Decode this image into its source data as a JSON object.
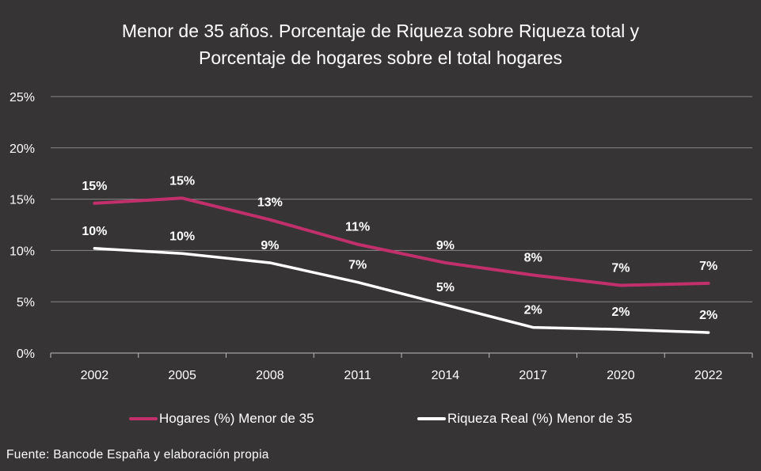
{
  "chart_data": {
    "type": "line",
    "title_line1": "Menor de 35 años.  Porcentaje de Riqueza sobre Riqueza total y",
    "title_line2": "Porcentaje de hogares sobre el total hogares",
    "categories": [
      "2002",
      "2005",
      "2008",
      "2011",
      "2014",
      "2017",
      "2020",
      "2022"
    ],
    "ylim": [
      0,
      25
    ],
    "yticks": [
      "0%",
      "5%",
      "10%",
      "15%",
      "20%",
      "25%"
    ],
    "grid": true,
    "legend_position": "bottom",
    "series": [
      {
        "name": "Hogares (%) Menor de 35",
        "color": "#c2306b",
        "values": [
          14.6,
          15.1,
          13.0,
          10.6,
          8.8,
          7.6,
          6.6,
          6.8
        ],
        "labels": [
          "15%",
          "15%",
          "13%",
          "11%",
          "9%",
          "8%",
          "7%",
          "7%"
        ]
      },
      {
        "name": "Riqueza Real (%) Menor de 35",
        "color": "#ffffff",
        "values": [
          10.2,
          9.7,
          8.8,
          6.9,
          4.7,
          2.5,
          2.3,
          2.0
        ],
        "labels": [
          "10%",
          "10%",
          "9%",
          "7%",
          "5%",
          "2%",
          "2%",
          "2%"
        ]
      }
    ]
  },
  "source": "Fuente: Bancode España y elaboración propia"
}
